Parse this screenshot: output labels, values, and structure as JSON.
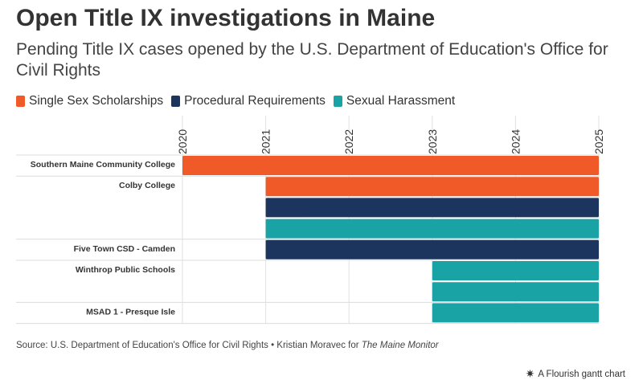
{
  "chart_data": {
    "type": "gantt",
    "title": "Open Title IX investigations in Maine",
    "subtitle": "Pending Title IX cases opened by the U.S. Department of Education's Office for Civil Rights",
    "x_range": [
      2020,
      2025
    ],
    "x_ticks": [
      "2020",
      "2021",
      "2022",
      "2023",
      "2024",
      "2025"
    ],
    "grid": true,
    "legend_position": "top-left",
    "categories": [
      {
        "name": "Single Sex Scholarships",
        "color": "#f05a28"
      },
      {
        "name": "Procedural Requirements",
        "color": "#1c355e"
      },
      {
        "name": "Sexual Harassment",
        "color": "#1aa3a5"
      }
    ],
    "rows": [
      {
        "label": "Southern Maine Community College",
        "bars": [
          {
            "category": "Single Sex Scholarships",
            "start": 2020.0,
            "end": 2025.0
          }
        ]
      },
      {
        "label": "Colby College",
        "bars": [
          {
            "category": "Single Sex Scholarships",
            "start": 2021.0,
            "end": 2025.0
          },
          {
            "category": "Procedural Requirements",
            "start": 2021.0,
            "end": 2025.0
          },
          {
            "category": "Sexual Harassment",
            "start": 2021.0,
            "end": 2025.0
          }
        ]
      },
      {
        "label": "Five Town CSD - Camden",
        "bars": [
          {
            "category": "Procedural Requirements",
            "start": 2021.0,
            "end": 2025.0
          }
        ]
      },
      {
        "label": "Winthrop Public Schools",
        "bars": [
          {
            "category": "Sexual Harassment",
            "start": 2023.0,
            "end": 2025.0
          },
          {
            "category": "Sexual Harassment",
            "start": 2023.0,
            "end": 2025.0
          }
        ]
      },
      {
        "label": "MSAD 1 - Presque Isle",
        "bars": [
          {
            "category": "Sexual Harassment",
            "start": 2023.0,
            "end": 2025.0
          }
        ]
      }
    ]
  },
  "footer": {
    "source_text": "Source: U.S. Department of Education's Office for Civil Rights • Kristian Moravec for ",
    "source_publication": "The Maine Monitor",
    "credit_icon": "flourish-star-icon",
    "credit_text": "A Flourish gantt chart"
  }
}
